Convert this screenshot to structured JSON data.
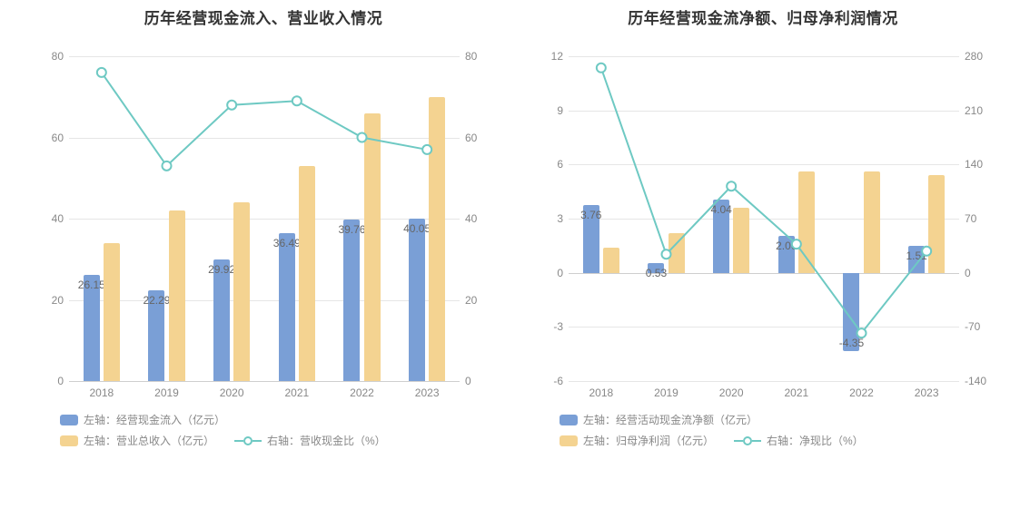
{
  "chart1": {
    "type": "bar+line",
    "title": "历年经营现金流入、营业收入情况",
    "title_fontsize": 17,
    "title_color": "#333333",
    "categories": [
      "2018",
      "2019",
      "2020",
      "2021",
      "2022",
      "2023"
    ],
    "left_axis": {
      "min": 0,
      "max": 80,
      "step": 20
    },
    "right_axis": {
      "min": 0,
      "max": 80,
      "step": 20
    },
    "grid_color": "#e6e6e6",
    "background_color": "#ffffff",
    "tick_fontsize": 12,
    "tick_color": "#888888",
    "bar_group_width": 0.56,
    "series_bars": [
      {
        "id": "cash_inflow",
        "name": "左轴：经营现金流入（亿元）",
        "color": "#7a9fd6",
        "values": [
          26.15,
          22.29,
          29.92,
          36.49,
          39.76,
          40.05
        ],
        "labels": [
          "26.15",
          "22.29",
          "29.92",
          "36.49",
          "39.76",
          "40.05"
        ],
        "axis": "left"
      },
      {
        "id": "revenue",
        "name": "左轴：营业总收入（亿元）",
        "color": "#f4d391",
        "values": [
          34,
          42,
          44,
          53,
          66,
          70
        ],
        "labels": null,
        "axis": "left"
      }
    ],
    "series_line": {
      "id": "ratio",
      "name": "右轴：营收现金比（%）",
      "color": "#6ec9c3",
      "values": [
        76,
        53,
        68,
        69,
        60,
        57
      ],
      "axis": "right",
      "line_width": 2,
      "marker_radius": 5
    },
    "legend_rows": [
      [
        {
          "series": "cash_inflow"
        }
      ],
      [
        {
          "series": "revenue"
        },
        {
          "series": "ratio"
        }
      ]
    ]
  },
  "chart2": {
    "type": "bar+line",
    "title": "历年经营现金流净额、归母净利润情况",
    "title_fontsize": 17,
    "title_color": "#333333",
    "categories": [
      "2018",
      "2019",
      "2020",
      "2021",
      "2022",
      "2023"
    ],
    "left_axis": {
      "min": -6,
      "max": 12,
      "step": 3
    },
    "right_axis": {
      "min": -140,
      "max": 280,
      "step": 70
    },
    "grid_color": "#e6e6e6",
    "background_color": "#ffffff",
    "tick_fontsize": 12,
    "tick_color": "#888888",
    "bar_group_width": 0.56,
    "series_bars": [
      {
        "id": "net_cash",
        "name": "左轴：经营活动现金流净额（亿元）",
        "color": "#7a9fd6",
        "values": [
          3.76,
          0.53,
          4.04,
          2.06,
          -4.35,
          1.51
        ],
        "labels": [
          "3.76",
          "0.53",
          "4.04",
          "2.06",
          "-4.35",
          "1.51"
        ],
        "axis": "left"
      },
      {
        "id": "net_profit",
        "name": "左轴：归母净利润（亿元）",
        "color": "#f4d391",
        "values": [
          1.4,
          2.2,
          3.6,
          5.6,
          5.6,
          5.4
        ],
        "labels": null,
        "axis": "left"
      }
    ],
    "series_line": {
      "id": "ratio",
      "name": "右轴：净现比（%）",
      "color": "#6ec9c3",
      "values": [
        265,
        24,
        112,
        37,
        -78,
        28
      ],
      "axis": "right",
      "line_width": 2,
      "marker_radius": 5
    },
    "legend_rows": [
      [
        {
          "series": "net_cash"
        }
      ],
      [
        {
          "series": "net_profit"
        },
        {
          "series": "ratio"
        }
      ]
    ]
  }
}
